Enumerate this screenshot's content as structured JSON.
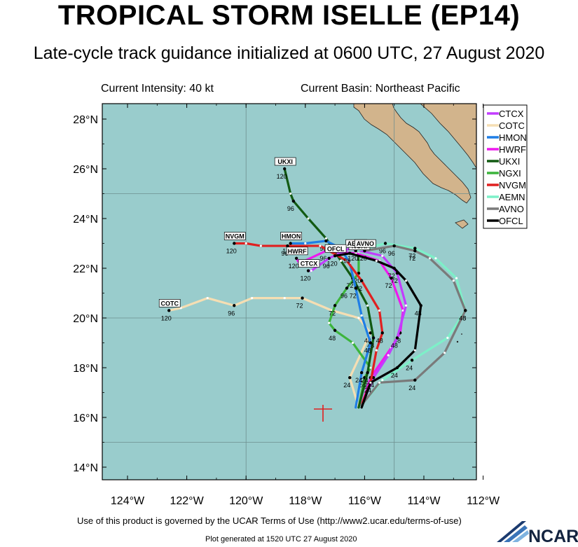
{
  "header": {
    "title": "TROPICAL STORM ISELLE (EP14)",
    "subtitle": "Late-cycle track guidance initialized at 0600 UTC, 27 August 2020"
  },
  "info": {
    "intensity": "Current Intensity: 40 kt",
    "basin": "Current Basin: Northeast Pacific"
  },
  "axes": {
    "lat_labels": [
      "28°N",
      "26°N",
      "24°N",
      "22°N",
      "20°N",
      "18°N",
      "16°N",
      "14°N"
    ],
    "lon_labels": [
      "124°W",
      "122°W",
      "120°W",
      "118°W",
      "116°W",
      "114°W",
      "112°W"
    ]
  },
  "colors": {
    "ocean": "#99cccc",
    "land": "#d2b48c"
  },
  "legend": [
    {
      "name": "CTCX",
      "color": "#c23cff"
    },
    {
      "name": "COTC",
      "color": "#f5deb3"
    },
    {
      "name": "HMON",
      "color": "#1f7ee6"
    },
    {
      "name": "HWRF",
      "color": "#ee19ee"
    },
    {
      "name": "UKXI",
      "color": "#125a12"
    },
    {
      "name": "NGXI",
      "color": "#3cb43c"
    },
    {
      "name": "NVGM",
      "color": "#e02020"
    },
    {
      "name": "AEMN",
      "color": "#7df0c8"
    },
    {
      "name": "AVNO",
      "color": "#7a7a7a"
    },
    {
      "name": "OFCL",
      "color": "#000000"
    }
  ],
  "tracks": [
    {
      "name": "COTC",
      "color": "#f5deb3",
      "label": "COTC",
      "points": [
        [
          -116.2,
          16.4
        ],
        [
          -116.5,
          17.6
        ],
        [
          -115.8,
          19.4
        ],
        [
          -116.2,
          20.0
        ],
        [
          -117.1,
          20.3
        ],
        [
          -118.1,
          20.8
        ],
        [
          -118.7,
          20.8
        ],
        [
          -119.8,
          20.8
        ],
        [
          -120.4,
          20.5
        ],
        [
          -121.3,
          20.8
        ],
        [
          -122.2,
          20.4
        ],
        [
          -122.6,
          20.3
        ]
      ],
      "ticks": [
        {
          "t": "24",
          "i": 1
        },
        {
          "t": "48",
          "i": 2
        },
        {
          "t": "72",
          "i": 5
        },
        {
          "t": "96",
          "i": 8
        },
        {
          "t": "120",
          "i": 11
        }
      ]
    },
    {
      "name": "NGXI",
      "color": "#3cb43c",
      "label": "NGXI",
      "points": [
        [
          -116.2,
          16.4
        ],
        [
          -116.0,
          17.6
        ],
        [
          -115.8,
          18.0
        ],
        [
          -116.4,
          19.0
        ],
        [
          -117.0,
          19.5
        ],
        [
          -117.2,
          19.8
        ],
        [
          -117.0,
          20.5
        ],
        [
          -116.6,
          21.2
        ],
        [
          -116.2,
          21.8
        ],
        [
          -116.2,
          22.6
        ]
      ],
      "ticks": [
        {
          "t": "24",
          "i": 1
        },
        {
          "t": "48",
          "i": 4
        },
        {
          "t": "72",
          "i": 6
        },
        {
          "t": "96",
          "i": 7
        },
        {
          "t": "120",
          "i": 8
        }
      ]
    },
    {
      "name": "UKXI",
      "color": "#125a12",
      "label": "UKXI",
      "points": [
        [
          -116.2,
          16.4
        ],
        [
          -115.9,
          17.8
        ],
        [
          -115.7,
          19.2
        ],
        [
          -115.9,
          20.5
        ],
        [
          -116.4,
          21.6
        ],
        [
          -116.8,
          22.3
        ],
        [
          -117.3,
          23.2
        ],
        [
          -117.9,
          24.0
        ],
        [
          -118.4,
          24.7
        ],
        [
          -118.5,
          25.0
        ],
        [
          -118.7,
          26.0
        ]
      ],
      "ticks": [
        {
          "t": "24",
          "i": 1
        },
        {
          "t": "48",
          "i": 2
        },
        {
          "t": "72",
          "i": 4
        },
        {
          "t": "96",
          "i": 8
        },
        {
          "t": "120",
          "i": 10
        }
      ]
    },
    {
      "name": "HMON",
      "color": "#1f7ee6",
      "label": "HMON",
      "points": [
        [
          -116.3,
          16.4
        ],
        [
          -116.1,
          17.8
        ],
        [
          -115.8,
          19.0
        ],
        [
          -116.1,
          20.1
        ],
        [
          -116.3,
          21.2
        ],
        [
          -116.5,
          22.2
        ],
        [
          -116.8,
          22.8
        ],
        [
          -117.3,
          23.1
        ],
        [
          -118.0,
          23.0
        ],
        [
          -118.5,
          23.0
        ]
      ],
      "ticks": [
        {
          "t": "24",
          "i": 1
        },
        {
          "t": "48",
          "i": 2
        },
        {
          "t": "72",
          "i": 4
        },
        {
          "t": "96",
          "i": 7
        },
        {
          "t": "120",
          "i": 9
        }
      ]
    },
    {
      "name": "HWRF",
      "color": "#ee19ee",
      "label": "HWRF",
      "points": [
        [
          -116.1,
          16.5
        ],
        [
          -115.8,
          17.6
        ],
        [
          -115.1,
          18.8
        ],
        [
          -114.8,
          19.4
        ],
        [
          -114.7,
          20.3
        ],
        [
          -115.1,
          21.6
        ],
        [
          -115.5,
          22.3
        ],
        [
          -116.3,
          22.6
        ],
        [
          -117.3,
          22.7
        ],
        [
          -118.2,
          22.2
        ],
        [
          -118.3,
          22.4
        ]
      ],
      "ticks": [
        {
          "t": "24",
          "i": 1
        },
        {
          "t": "48",
          "i": 3
        },
        {
          "t": "72",
          "i": 5
        },
        {
          "t": "96",
          "i": 8
        },
        {
          "t": "120",
          "i": 10
        }
      ]
    },
    {
      "name": "CTCX",
      "color": "#c23cff",
      "label": "CTCX",
      "points": [
        [
          -116.1,
          16.5
        ],
        [
          -115.7,
          17.6
        ],
        [
          -115.2,
          18.5
        ],
        [
          -114.9,
          19.2
        ],
        [
          -114.6,
          20.5
        ],
        [
          -114.9,
          21.8
        ],
        [
          -115.4,
          22.5
        ],
        [
          -116.5,
          22.8
        ],
        [
          -117.2,
          22.4
        ],
        [
          -117.8,
          21.9
        ],
        [
          -117.9,
          21.9
        ]
      ],
      "ticks": [
        {
          "t": "24",
          "i": 1
        },
        {
          "t": "48",
          "i": 3
        },
        {
          "t": "72",
          "i": 5
        },
        {
          "t": "96",
          "i": 8
        },
        {
          "t": "120",
          "i": 10
        }
      ]
    },
    {
      "name": "NVGM",
      "color": "#e02020",
      "label": "NVGM",
      "points": [
        [
          -116.1,
          16.5
        ],
        [
          -115.8,
          17.4
        ],
        [
          -115.6,
          18.7
        ],
        [
          -115.4,
          19.4
        ],
        [
          -115.5,
          20.3
        ],
        [
          -116.1,
          21.5
        ],
        [
          -116.6,
          22.3
        ],
        [
          -117.5,
          22.9
        ],
        [
          -118.6,
          22.9
        ],
        [
          -119.5,
          22.9
        ],
        [
          -120.0,
          23.0
        ],
        [
          -120.4,
          23.0
        ]
      ],
      "ticks": [
        {
          "t": "24",
          "i": 1
        },
        {
          "t": "48",
          "i": 3
        },
        {
          "t": "72",
          "i": 5
        },
        {
          "t": "96",
          "i": 8
        },
        {
          "t": "120",
          "i": 11
        }
      ]
    },
    {
      "name": "AEMN",
      "color": "#7df0c8",
      "label": "AEMN",
      "points": [
        [
          -116.1,
          16.5
        ],
        [
          -115.4,
          17.5
        ],
        [
          -114.4,
          18.3
        ],
        [
          -113.2,
          19.2
        ],
        [
          -112.6,
          20.3
        ],
        [
          -112.9,
          21.6
        ],
        [
          -113.6,
          22.4
        ],
        [
          -114.3,
          22.8
        ],
        [
          -115.3,
          23.0
        ],
        [
          -116.3,
          22.7
        ]
      ],
      "ticks": [
        {
          "t": "24",
          "i": 2
        },
        {
          "t": "48",
          "i": 4
        },
        {
          "t": "72",
          "i": 7
        },
        {
          "t": "96",
          "i": 8
        },
        {
          "t": "120",
          "i": 9
        }
      ]
    },
    {
      "name": "AVNO",
      "color": "#7a7a7a",
      "label": "AVNO",
      "points": [
        [
          -116.1,
          16.5
        ],
        [
          -115.5,
          17.4
        ],
        [
          -114.3,
          17.5
        ],
        [
          -113.3,
          18.6
        ],
        [
          -112.6,
          20.3
        ],
        [
          -113.0,
          21.5
        ],
        [
          -113.8,
          22.4
        ],
        [
          -114.3,
          22.7
        ],
        [
          -115.0,
          22.9
        ],
        [
          -116.0,
          22.7
        ]
      ],
      "ticks": [
        {
          "t": "24",
          "i": 2
        },
        {
          "t": "48",
          "i": 4
        },
        {
          "t": "72",
          "i": 7
        },
        {
          "t": "96",
          "i": 8
        },
        {
          "t": "120",
          "i": 9
        }
      ]
    },
    {
      "name": "OFCL",
      "color": "#000000",
      "label": "OFCL",
      "points": [
        [
          -116.1,
          16.4
        ],
        [
          -115.8,
          17.4
        ],
        [
          -114.9,
          18.0
        ],
        [
          -114.3,
          18.7
        ],
        [
          -114.1,
          20.5
        ],
        [
          -114.6,
          21.5
        ],
        [
          -115.0,
          22.0
        ],
        [
          -115.6,
          22.3
        ],
        [
          -116.5,
          22.6
        ],
        [
          -117.0,
          22.5
        ]
      ],
      "ticks": [
        {
          "t": "24",
          "i": 2
        },
        {
          "t": "48",
          "i": 4
        },
        {
          "t": "72",
          "i": 6
        },
        {
          "t": "96",
          "i": 8
        },
        {
          "t": "120",
          "i": 9
        }
      ]
    }
  ],
  "footer": {
    "terms": "Use of this product is governed by the UCAR Terms of Use (http://www2.ucar.edu/terms-of-use)",
    "generated": "Plot generated at 1520 UTC   27 August 2020",
    "logo": "NCAR"
  }
}
